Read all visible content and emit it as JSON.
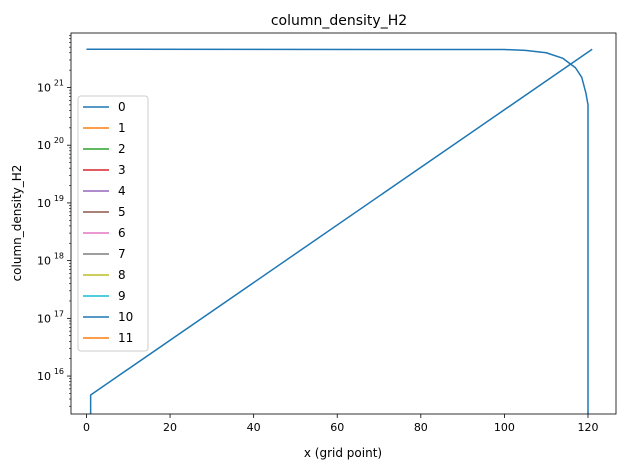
{
  "chart_data": {
    "type": "line",
    "title": "column_density_H2",
    "xlabel": "x (grid point)",
    "ylabel": "column_density_H2",
    "yscale": "log",
    "xlim": [
      -3.7,
      126.7
    ],
    "ylim": [
      2200000000000000.0,
      8.8e+21
    ],
    "xticks": [
      0,
      20,
      40,
      60,
      80,
      100,
      120
    ],
    "yticks": [
      {
        "base": "10",
        "exp": "16",
        "value": 1e+16
      },
      {
        "base": "10",
        "exp": "17",
        "value": 1e+17
      },
      {
        "base": "10",
        "exp": "18",
        "value": 1e+18
      },
      {
        "base": "10",
        "exp": "19",
        "value": 1e+19
      },
      {
        "base": "10",
        "exp": "20",
        "value": 1e+20
      },
      {
        "base": "10",
        "exp": "21",
        "value": 1e+21
      }
    ],
    "grid": false,
    "legend_loc": "left",
    "series": [
      {
        "name": "0",
        "color": "#1f77b4",
        "x": [
          0,
          100,
          105,
          110,
          114,
          117,
          118.5,
          119.5,
          120,
          120
        ],
        "y": [
          4.6e+21,
          4.55e+21,
          4.4e+21,
          4e+21,
          3.2e+21,
          2.2e+21,
          1.5e+21,
          8e+20,
          5e+20,
          2200000000000000.0
        ]
      },
      {
        "name": "1",
        "color": "#ff7f0e",
        "x": [],
        "y": []
      },
      {
        "name": "2",
        "color": "#2ca02c",
        "x": [],
        "y": []
      },
      {
        "name": "3",
        "color": "#d62728",
        "x": [],
        "y": []
      },
      {
        "name": "4",
        "color": "#9467bd",
        "x": [],
        "y": []
      },
      {
        "name": "5",
        "color": "#8c564b",
        "x": [],
        "y": []
      },
      {
        "name": "6",
        "color": "#e377c2",
        "x": [],
        "y": []
      },
      {
        "name": "7",
        "color": "#7f7f7f",
        "x": [],
        "y": []
      },
      {
        "name": "8",
        "color": "#bcbd22",
        "x": [],
        "y": []
      },
      {
        "name": "9",
        "color": "#17becf",
        "x": [],
        "y": []
      },
      {
        "name": "10",
        "color": "#1f77b4",
        "x": [
          1,
          1,
          121
        ],
        "y": [
          2200000000000000.0,
          4700000000000000.0,
          4.6e+21
        ]
      },
      {
        "name": "11",
        "color": "#ff7f0e",
        "x": [],
        "y": []
      }
    ]
  }
}
